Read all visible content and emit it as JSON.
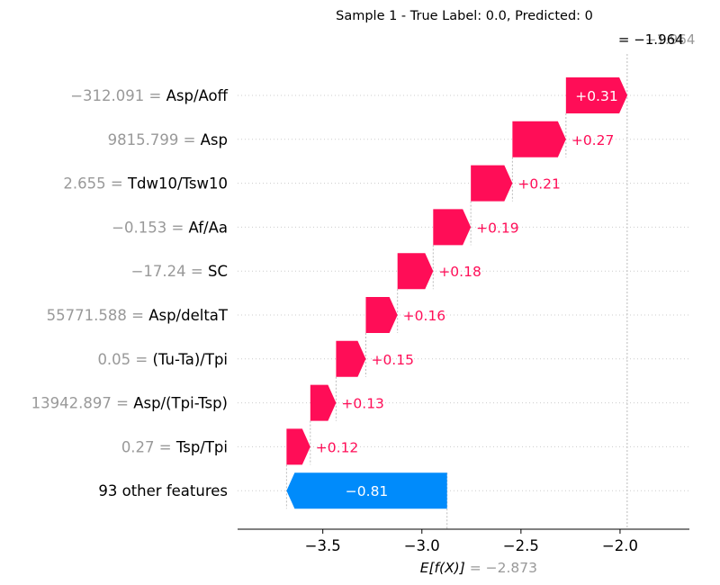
{
  "chart_data": {
    "type": "waterfall",
    "title": "Sample 1 - True Label: 0.0, Predicted: 0",
    "base_value": -2.873,
    "base_value_text": "−2.873",
    "base_label": "E[f(X)]",
    "output_value": -1.964,
    "output_label_text": "= −1.964",
    "output_label_overlap_text": "−1.964",
    "features": [
      {
        "value_text": "−312.091",
        "feature": "Asp/Aoff",
        "contribution": 0.31,
        "label": "+0.31"
      },
      {
        "value_text": "9815.799",
        "feature": "Asp",
        "contribution": 0.27,
        "label": "+0.27"
      },
      {
        "value_text": "2.655",
        "feature": "Tdw10/Tsw10",
        "contribution": 0.21,
        "label": "+0.21"
      },
      {
        "value_text": "−0.153",
        "feature": "Af/Aa",
        "contribution": 0.19,
        "label": "+0.19"
      },
      {
        "value_text": "−17.24",
        "feature": "SC",
        "contribution": 0.18,
        "label": "+0.18"
      },
      {
        "value_text": "55771.588",
        "feature": "Asp/deltaT",
        "contribution": 0.16,
        "label": "+0.16"
      },
      {
        "value_text": "0.05",
        "feature": "(Tu-Ta)/Tpi",
        "contribution": 0.15,
        "label": "+0.15"
      },
      {
        "value_text": "13942.897",
        "feature": "Asp/(Tpi-Tsp)",
        "contribution": 0.13,
        "label": "+0.13"
      },
      {
        "value_text": "0.27",
        "feature": "Tsp/Tpi",
        "contribution": 0.12,
        "label": "+0.12"
      },
      {
        "value_text": "",
        "feature": "93 other features",
        "contribution": -0.81,
        "label": "−0.81"
      }
    ],
    "x_ticks": [
      {
        "value": -3.5,
        "label": "−3.5"
      },
      {
        "value": -3.0,
        "label": "−3.0"
      },
      {
        "value": -2.5,
        "label": "−2.5"
      },
      {
        "value": -2.0,
        "label": "−2.0"
      }
    ],
    "xlim": [
      -3.93,
      -1.65
    ],
    "colors": {
      "positive": "#ff0d57",
      "negative": "#008bfb",
      "value_text": "#999999",
      "axis": "#000000",
      "grid": "#cccccc"
    }
  }
}
